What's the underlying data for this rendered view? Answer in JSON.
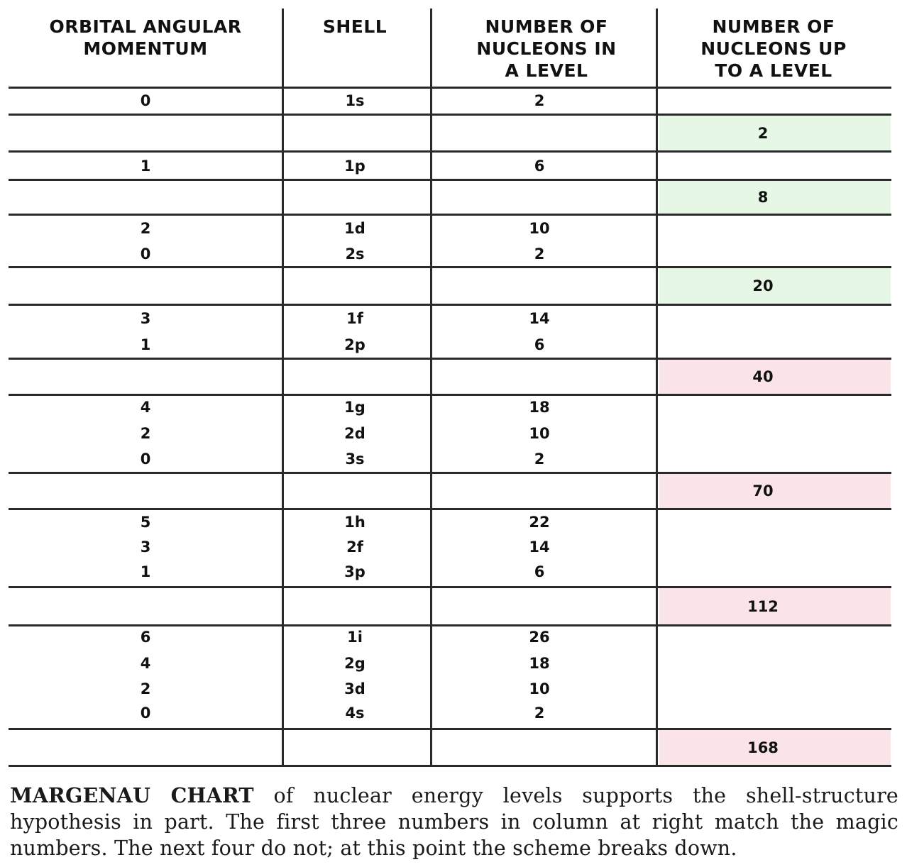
{
  "headers": {
    "orbital": "ORBITAL ANGULAR\nMOMENTUM",
    "shell": "SHELL",
    "per_level": "NUMBER OF\nNUCLEONS IN\nA LEVEL",
    "cumulative": "NUMBER OF\nNUCLEONS UP\nTO A LEVEL"
  },
  "groups": [
    {
      "rows": [
        [
          "0",
          "1s",
          "2"
        ]
      ],
      "total": "2",
      "total_color": "green"
    },
    {
      "rows": [
        [
          "1",
          "1p",
          "6"
        ]
      ],
      "total": "8",
      "total_color": "green"
    },
    {
      "rows": [
        [
          "2",
          "1d",
          "10"
        ],
        [
          "0",
          "2s",
          "2"
        ]
      ],
      "total": "20",
      "total_color": "green"
    },
    {
      "rows": [
        [
          "3",
          "1f",
          "14"
        ],
        [
          "1",
          "2p",
          "6"
        ]
      ],
      "total": "40",
      "total_color": "red"
    },
    {
      "rows": [
        [
          "4",
          "1g",
          "18"
        ],
        [
          "2",
          "2d",
          "10"
        ],
        [
          "0",
          "3s",
          "2"
        ]
      ],
      "total": "70",
      "total_color": "red"
    },
    {
      "rows": [
        [
          "5",
          "1h",
          "22"
        ],
        [
          "3",
          "2f",
          "14"
        ],
        [
          "1",
          "3p",
          "6"
        ]
      ],
      "total": "112",
      "total_color": "red"
    },
    {
      "rows": [
        [
          "6",
          "1i",
          "26"
        ],
        [
          "4",
          "2g",
          "18"
        ],
        [
          "2",
          "3d",
          "10"
        ],
        [
          "0",
          "4s",
          "2"
        ]
      ],
      "total": "168",
      "total_color": "red"
    }
  ],
  "colors": {
    "green": "#e6f7e6",
    "red": "#fbe4e7"
  },
  "caption": {
    "title": "MARGENAU CHART",
    "body": " of nuclear energy levels supports the shell-structure hypothesis in part. The first three numbers in column at right match the magic numbers. The next four do not; at this point the scheme breaks down."
  }
}
